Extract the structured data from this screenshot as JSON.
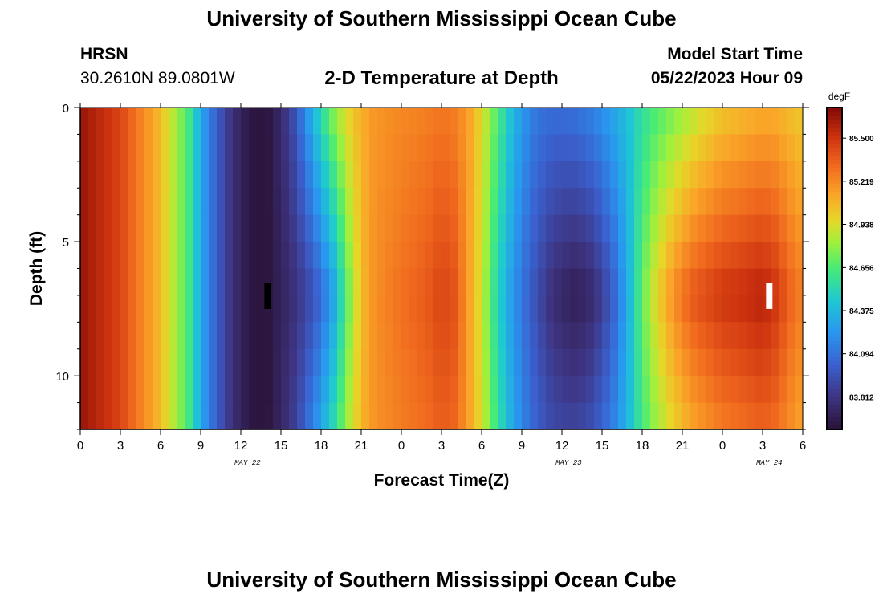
{
  "header": {
    "title": "University of Southern Mississippi Ocean Cube",
    "station_name": "HRSN",
    "station_coords": "30.2610N  89.0801W",
    "subtitle": "2-D Temperature at Depth",
    "model_start_label": "Model Start Time",
    "model_start_value": "05/22/2023 Hour 09"
  },
  "footer": {
    "title": "University of Southern Mississippi Ocean Cube"
  },
  "chart_data": {
    "type": "heatmap",
    "title": "2-D Temperature at Depth",
    "xlabel": "Forecast Time(Z)",
    "ylabel": "Depth (ft)",
    "x_tick_labels": [
      "0",
      "3",
      "6",
      "9",
      "12",
      "15",
      "18",
      "21",
      "0",
      "3",
      "6",
      "9",
      "12",
      "15",
      "18",
      "21",
      "0",
      "3",
      "6"
    ],
    "x_tick_hours": [
      0,
      3,
      6,
      9,
      12,
      15,
      18,
      21,
      24,
      27,
      30,
      33,
      36,
      39,
      42,
      45,
      48,
      51,
      54
    ],
    "x_range_hours": [
      0,
      54
    ],
    "date_labels": [
      {
        "label": "MAY 22",
        "hour": 12.5
      },
      {
        "label": "MAY 23",
        "hour": 36.5
      },
      {
        "label": "MAY 24",
        "hour": 51.5
      }
    ],
    "y_tick_labels": [
      "0",
      "5",
      "10"
    ],
    "y_tick_values": [
      0,
      5,
      10
    ],
    "y_range_ft": [
      0,
      12
    ],
    "y_inverted": true,
    "colorbar": {
      "unit": "degF",
      "tick_labels": [
        "85.500",
        "85.219",
        "84.938",
        "84.656",
        "84.375",
        "84.094",
        "83.812"
      ],
      "tick_values": [
        85.5,
        85.219,
        84.938,
        84.656,
        84.375,
        84.094,
        83.812
      ],
      "min": 83.6,
      "max": 85.7
    },
    "time_hours": [
      0,
      3,
      6,
      8,
      9,
      10,
      11,
      12,
      13,
      14,
      15,
      16,
      17,
      18,
      19,
      20,
      21,
      22,
      24,
      26,
      27,
      28,
      29,
      30,
      31,
      32,
      33,
      34,
      35,
      36,
      37,
      38,
      39,
      40,
      41,
      42,
      43,
      44,
      45,
      46,
      47,
      48,
      49,
      50,
      51,
      52,
      53,
      54
    ],
    "temp_surface_degF": [
      85.65,
      85.45,
      85.05,
      84.65,
      84.3,
      84.05,
      83.85,
      83.7,
      83.62,
      83.62,
      83.75,
      83.95,
      84.25,
      84.55,
      84.8,
      84.98,
      85.1,
      85.18,
      85.22,
      85.25,
      85.28,
      85.25,
      85.15,
      84.95,
      84.7,
      84.45,
      84.25,
      84.12,
      84.08,
      84.08,
      84.1,
      84.15,
      84.22,
      84.32,
      84.42,
      84.55,
      84.65,
      84.72,
      84.8,
      84.88,
      84.95,
      85.02,
      85.05,
      85.08,
      85.1,
      85.1,
      85.05,
      85.0
    ],
    "temp_depth7_degF": [
      85.65,
      85.45,
      85.05,
      84.65,
      84.3,
      84.05,
      83.85,
      83.7,
      83.62,
      83.62,
      83.7,
      83.78,
      83.9,
      84.05,
      84.3,
      84.7,
      85.05,
      85.2,
      85.3,
      85.38,
      85.45,
      85.4,
      85.15,
      84.9,
      84.55,
      84.3,
      84.1,
      83.95,
      83.8,
      83.72,
      83.68,
      83.72,
      83.85,
      84.05,
      84.35,
      84.7,
      84.95,
      85.15,
      85.3,
      85.4,
      85.45,
      85.5,
      85.52,
      85.55,
      85.58,
      85.5,
      85.35,
      85.25
    ],
    "markers": [
      {
        "hour": 14,
        "depth_ft": 7,
        "color": "#000000"
      },
      {
        "hour": 51.5,
        "depth_ft": 7,
        "color": "#ffffff"
      }
    ]
  }
}
